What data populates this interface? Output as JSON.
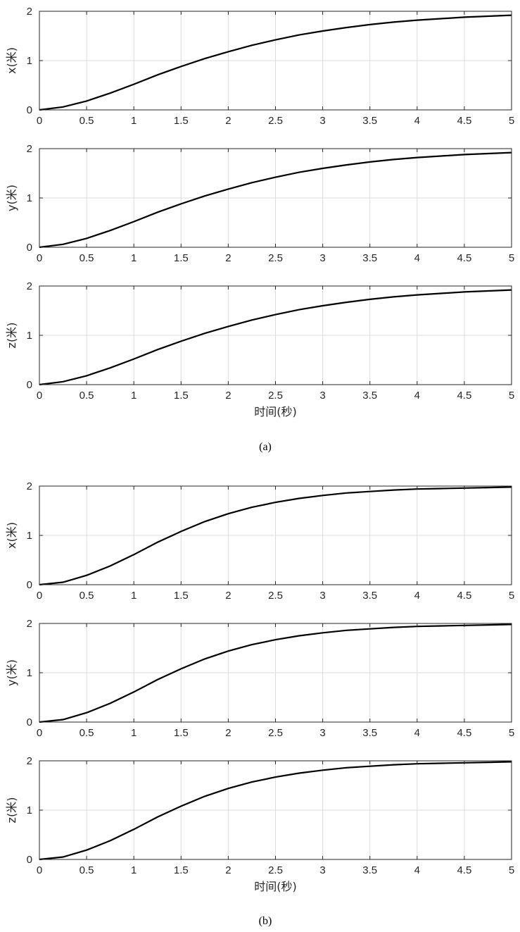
{
  "chart_data": [
    {
      "type": "line",
      "panel": "a",
      "xlabel": "",
      "ylabel": "x(米)",
      "xlim": [
        0,
        5
      ],
      "ylim": [
        0,
        2
      ],
      "xticks": [
        "0",
        "0.5",
        "1",
        "1.5",
        "2",
        "2.5",
        "3",
        "3.5",
        "4",
        "4.5",
        "5"
      ],
      "yticks": [
        "0",
        "1",
        "2"
      ],
      "grid": true,
      "series": [
        {
          "x": [
            0,
            0.25,
            0.5,
            0.75,
            1,
            1.25,
            1.5,
            1.75,
            2,
            2.25,
            2.5,
            2.75,
            3,
            3.25,
            3.5,
            3.75,
            4,
            4.25,
            4.5,
            4.75,
            5
          ],
          "y": [
            0,
            0.06,
            0.18,
            0.34,
            0.52,
            0.71,
            0.88,
            1.04,
            1.18,
            1.31,
            1.42,
            1.52,
            1.6,
            1.67,
            1.73,
            1.78,
            1.82,
            1.85,
            1.88,
            1.9,
            1.92
          ]
        }
      ]
    },
    {
      "type": "line",
      "panel": "a",
      "xlabel": "",
      "ylabel": "y(米)",
      "xlim": [
        0,
        5
      ],
      "ylim": [
        0,
        2
      ],
      "xticks": [
        "0",
        "0.5",
        "1",
        "1.5",
        "2",
        "2.5",
        "3",
        "3.5",
        "4",
        "4.5",
        "5"
      ],
      "yticks": [
        "0",
        "1",
        "2"
      ],
      "grid": true,
      "series": [
        {
          "x": [
            0,
            0.25,
            0.5,
            0.75,
            1,
            1.25,
            1.5,
            1.75,
            2,
            2.25,
            2.5,
            2.75,
            3,
            3.25,
            3.5,
            3.75,
            4,
            4.25,
            4.5,
            4.75,
            5
          ],
          "y": [
            0,
            0.06,
            0.18,
            0.34,
            0.52,
            0.71,
            0.88,
            1.04,
            1.18,
            1.31,
            1.42,
            1.52,
            1.6,
            1.67,
            1.73,
            1.78,
            1.82,
            1.85,
            1.88,
            1.9,
            1.92
          ]
        }
      ]
    },
    {
      "type": "line",
      "panel": "a",
      "xlabel": "时间(秒)",
      "ylabel": "z(米)",
      "xlim": [
        0,
        5
      ],
      "ylim": [
        0,
        2
      ],
      "xticks": [
        "0",
        "0.5",
        "1",
        "1.5",
        "2",
        "2.5",
        "3",
        "3.5",
        "4",
        "4.5",
        "5"
      ],
      "yticks": [
        "0",
        "1",
        "2"
      ],
      "grid": true,
      "series": [
        {
          "x": [
            0,
            0.25,
            0.5,
            0.75,
            1,
            1.25,
            1.5,
            1.75,
            2,
            2.25,
            2.5,
            2.75,
            3,
            3.25,
            3.5,
            3.75,
            4,
            4.25,
            4.5,
            4.75,
            5
          ],
          "y": [
            0,
            0.06,
            0.18,
            0.34,
            0.52,
            0.71,
            0.88,
            1.04,
            1.18,
            1.31,
            1.42,
            1.52,
            1.6,
            1.67,
            1.73,
            1.78,
            1.82,
            1.85,
            1.88,
            1.9,
            1.92
          ]
        }
      ]
    },
    {
      "type": "line",
      "panel": "b",
      "xlabel": "",
      "ylabel": "x(米)",
      "xlim": [
        0,
        5
      ],
      "ylim": [
        0,
        2
      ],
      "xticks": [
        "0",
        "0.5",
        "1",
        "1.5",
        "2",
        "2.5",
        "3",
        "3.5",
        "4",
        "4.5",
        "5"
      ],
      "yticks": [
        "0",
        "1",
        "2"
      ],
      "grid": true,
      "series": [
        {
          "x": [
            0,
            0.25,
            0.5,
            0.75,
            1,
            1.25,
            1.5,
            1.75,
            2,
            2.25,
            2.5,
            2.75,
            3,
            3.25,
            3.5,
            3.75,
            4,
            4.25,
            4.5,
            4.75,
            5
          ],
          "y": [
            0,
            0.05,
            0.19,
            0.38,
            0.61,
            0.86,
            1.08,
            1.28,
            1.44,
            1.57,
            1.67,
            1.75,
            1.81,
            1.86,
            1.89,
            1.92,
            1.94,
            1.95,
            1.96,
            1.97,
            1.98
          ]
        }
      ]
    },
    {
      "type": "line",
      "panel": "b",
      "xlabel": "",
      "ylabel": "y(米)",
      "xlim": [
        0,
        5
      ],
      "ylim": [
        0,
        2
      ],
      "xticks": [
        "0",
        "0.5",
        "1",
        "1.5",
        "2",
        "2.5",
        "3",
        "3.5",
        "4",
        "4.5",
        "5"
      ],
      "yticks": [
        "0",
        "1",
        "2"
      ],
      "grid": true,
      "series": [
        {
          "x": [
            0,
            0.25,
            0.5,
            0.75,
            1,
            1.25,
            1.5,
            1.75,
            2,
            2.25,
            2.5,
            2.75,
            3,
            3.25,
            3.5,
            3.75,
            4,
            4.25,
            4.5,
            4.75,
            5
          ],
          "y": [
            0,
            0.05,
            0.19,
            0.38,
            0.61,
            0.86,
            1.08,
            1.28,
            1.44,
            1.57,
            1.67,
            1.75,
            1.81,
            1.86,
            1.89,
            1.92,
            1.94,
            1.95,
            1.96,
            1.97,
            1.98
          ]
        }
      ]
    },
    {
      "type": "line",
      "panel": "b",
      "xlabel": "时间(秒)",
      "ylabel": "z(米)",
      "xlim": [
        0,
        5
      ],
      "ylim": [
        0,
        2
      ],
      "xticks": [
        "0",
        "0.5",
        "1",
        "1.5",
        "2",
        "2.5",
        "3",
        "3.5",
        "4",
        "4.5",
        "5"
      ],
      "yticks": [
        "0",
        "1",
        "2"
      ],
      "grid": true,
      "series": [
        {
          "x": [
            0,
            0.25,
            0.5,
            0.75,
            1,
            1.25,
            1.5,
            1.75,
            2,
            2.25,
            2.5,
            2.75,
            3,
            3.25,
            3.5,
            3.75,
            4,
            4.25,
            4.5,
            4.75,
            5
          ],
          "y": [
            0,
            0.05,
            0.19,
            0.38,
            0.61,
            0.86,
            1.08,
            1.28,
            1.44,
            1.57,
            1.67,
            1.75,
            1.81,
            1.86,
            1.89,
            1.92,
            1.94,
            1.95,
            1.96,
            1.97,
            1.98
          ]
        }
      ]
    }
  ],
  "captions": [
    "(a)",
    "(b)"
  ],
  "colors": {
    "line": "#000000",
    "grid": "#dcdcdc",
    "axis": "#262626"
  }
}
